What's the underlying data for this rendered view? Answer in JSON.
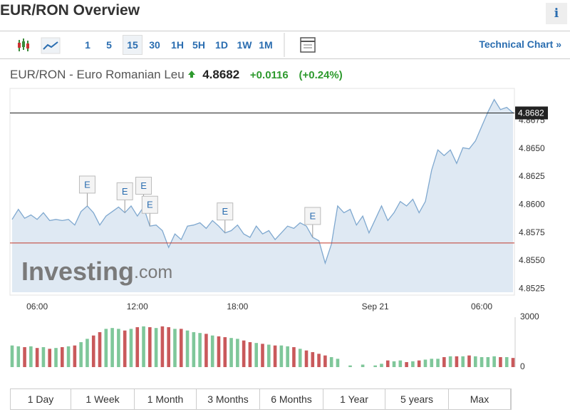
{
  "header": {
    "title": "EUR/RON Overview",
    "info": "i"
  },
  "toolbar": {
    "intervals": [
      "1",
      "5",
      "15",
      "30",
      "1H",
      "5H",
      "1D",
      "1W",
      "1M"
    ],
    "selected": "15",
    "technical_link": "Technical Chart »"
  },
  "quote": {
    "name": "EUR/RON - Euro Romanian Leu",
    "price": "4.8682",
    "change": "+0.0116",
    "change_percent": "(+0.24%)"
  },
  "chart_data": [
    {
      "type": "line",
      "color": "#7fa8cf",
      "fill": "#dfe9f3",
      "categories": [
        null,
        null,
        null,
        null,
        "06:00",
        null,
        null,
        null,
        null,
        null,
        null,
        null,
        null,
        null,
        null,
        null,
        null,
        null,
        null,
        null,
        "12:00",
        null,
        null,
        null,
        null,
        null,
        null,
        null,
        null,
        null,
        null,
        null,
        null,
        null,
        null,
        null,
        "18:00",
        null,
        null,
        null,
        null,
        null,
        null,
        null,
        null,
        null,
        null,
        null,
        null,
        null,
        null,
        null,
        null,
        null,
        null,
        null,
        null,
        null,
        "Sep 21",
        null,
        null,
        null,
        null,
        null,
        null,
        null,
        null,
        null,
        null,
        null,
        null,
        null,
        null,
        null,
        null,
        "06:00",
        null,
        null,
        null,
        null,
        null
      ],
      "values": [
        4.8587,
        4.8596,
        4.8588,
        4.8591,
        4.8587,
        4.8593,
        4.8586,
        4.8587,
        4.8586,
        4.8587,
        4.8582,
        4.8594,
        4.8599,
        4.8593,
        4.8582,
        4.859,
        4.8594,
        4.8598,
        4.8593,
        4.8599,
        4.859,
        4.8598,
        4.8581,
        4.8582,
        4.8577,
        4.8562,
        4.8574,
        4.8569,
        4.8581,
        4.8582,
        4.8584,
        4.8579,
        4.8586,
        4.8581,
        4.8575,
        4.8577,
        4.8582,
        4.8574,
        4.8571,
        4.8581,
        4.8574,
        4.8577,
        4.8569,
        4.8575,
        4.8581,
        4.8579,
        4.8584,
        4.8581,
        4.8571,
        4.8568,
        4.8548,
        4.8565,
        4.8599,
        4.8593,
        4.8596,
        4.8582,
        4.859,
        4.8575,
        4.8587,
        4.8599,
        4.8586,
        4.8593,
        4.8603,
        4.8599,
        4.8605,
        4.8593,
        4.8603,
        4.8631,
        4.8649,
        4.8644,
        4.8649,
        4.8637,
        4.8651,
        4.865,
        4.8657,
        4.867,
        4.8683,
        4.8694,
        4.8685,
        4.8687,
        4.8682
      ],
      "ylim": [
        4.8522,
        4.8702
      ],
      "yticks": [
        4.8525,
        {
          "value": 4.855,
          "label": "4.8550"
        },
        4.8575,
        {
          "value": 4.86,
          "label": "4.8600"
        },
        4.8625,
        {
          "value": 4.865,
          "label": "4.8650"
        },
        4.8675
      ],
      "last_price": 4.8682,
      "last_price_color": "#222",
      "previous_close": 4.8566,
      "previous_close_color": "#c0392b",
      "annotations": [
        {
          "x": 12,
          "text": "E"
        },
        {
          "x": 18,
          "text": "E"
        },
        {
          "x": 21,
          "text": "E"
        },
        {
          "x": 22,
          "text": "E"
        },
        {
          "x": 34,
          "text": "E"
        },
        {
          "x": 48,
          "text": "E"
        }
      ],
      "watermark": [
        "Investing",
        ".com"
      ]
    },
    {
      "type": "bar",
      "up_color": "#7fc79a",
      "down_color": "#c9595b",
      "values": [
        1300,
        1250,
        1200,
        1250,
        1150,
        1200,
        1100,
        1150,
        1200,
        1250,
        1300,
        1500,
        1700,
        1900,
        2100,
        2300,
        2350,
        2300,
        2200,
        2300,
        2400,
        2450,
        2400,
        2350,
        2450,
        2400,
        2300,
        2300,
        2200,
        2100,
        2050,
        2000,
        1900,
        1850,
        1800,
        1750,
        1700,
        1600,
        1500,
        1450,
        1400,
        1350,
        1300,
        1300,
        1250,
        1200,
        1100,
        1000,
        900,
        800,
        700,
        600,
        500,
        0,
        100,
        0,
        150,
        0,
        100,
        200,
        400,
        350,
        400,
        300,
        350,
        400,
        450,
        500,
        500,
        600,
        650,
        650,
        650,
        700,
        650,
        600,
        600,
        650,
        600,
        600,
        550
      ],
      "ylim": [
        0,
        3000
      ],
      "yticks": [
        0,
        3000
      ]
    }
  ],
  "periods": [
    "1 Day",
    "1 Week",
    "1 Month",
    "3 Months",
    "6 Months",
    "1 Year",
    "5 years",
    "Max"
  ]
}
